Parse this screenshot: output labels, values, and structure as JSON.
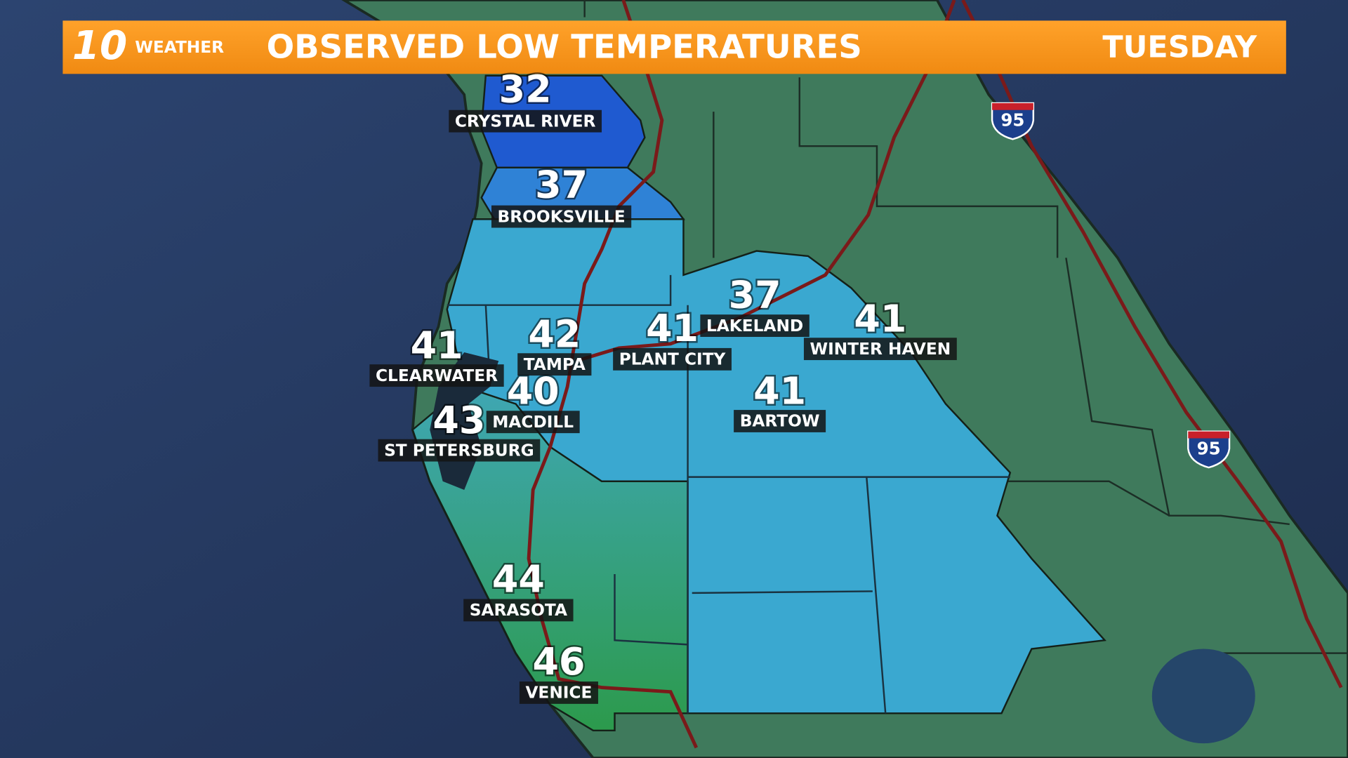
{
  "header": {
    "logo": "10",
    "brand": "WEATHER",
    "title": "OBSERVED LOW TEMPERATURES",
    "day": "TUESDAY"
  },
  "stations": [
    {
      "name": "CRYSTAL RIVER",
      "temp": 32
    },
    {
      "name": "BROOKSVILLE",
      "temp": 37
    },
    {
      "name": "CLEARWATER",
      "temp": 41
    },
    {
      "name": "TAMPA",
      "temp": 42
    },
    {
      "name": "MACDILL",
      "temp": 40
    },
    {
      "name": "ST PETERSBURG",
      "temp": 43
    },
    {
      "name": "PLANT CITY",
      "temp": 41
    },
    {
      "name": "LAKELAND",
      "temp": 37
    },
    {
      "name": "WINTER HAVEN",
      "temp": 41
    },
    {
      "name": "BARTOW",
      "temp": 41
    },
    {
      "name": "SARASOTA",
      "temp": 44
    },
    {
      "name": "VENICE",
      "temp": 46
    }
  ],
  "shields": [
    {
      "label": "95"
    },
    {
      "label": "95"
    }
  ]
}
